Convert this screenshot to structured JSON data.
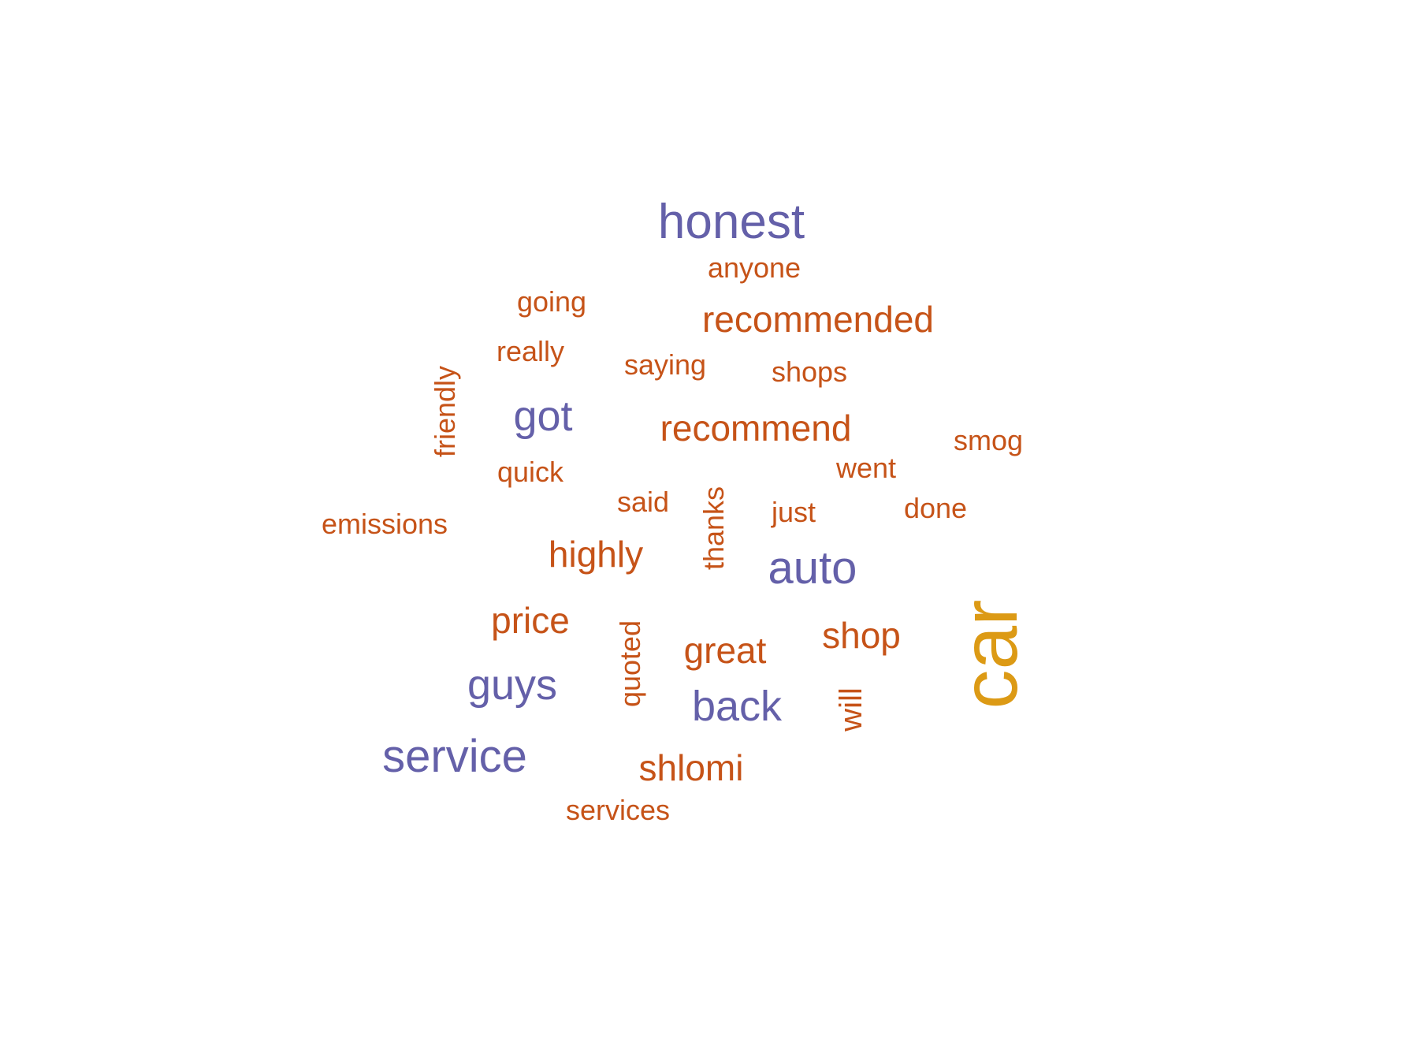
{
  "colors": {
    "background": "#ffffff",
    "purple": "#6460a9",
    "orange": "#c65318",
    "gold": "#dc9a15"
  },
  "words": [
    {
      "id": "honest",
      "text": "honest",
      "color": "purple"
    },
    {
      "id": "anyone",
      "text": "anyone",
      "color": "orange"
    },
    {
      "id": "going",
      "text": "going",
      "color": "orange"
    },
    {
      "id": "recommended",
      "text": "recommended",
      "color": "orange"
    },
    {
      "id": "really",
      "text": "really",
      "color": "orange"
    },
    {
      "id": "saying",
      "text": "saying",
      "color": "orange"
    },
    {
      "id": "shops",
      "text": "shops",
      "color": "orange"
    },
    {
      "id": "friendly",
      "text": "friendly",
      "color": "orange"
    },
    {
      "id": "got",
      "text": "got",
      "color": "purple"
    },
    {
      "id": "recommend",
      "text": "recommend",
      "color": "orange"
    },
    {
      "id": "smog",
      "text": "smog",
      "color": "orange"
    },
    {
      "id": "quick",
      "text": "quick",
      "color": "orange"
    },
    {
      "id": "went",
      "text": "went",
      "color": "orange"
    },
    {
      "id": "said",
      "text": "said",
      "color": "orange"
    },
    {
      "id": "thanks",
      "text": "thanks",
      "color": "orange"
    },
    {
      "id": "just",
      "text": "just",
      "color": "orange"
    },
    {
      "id": "done",
      "text": "done",
      "color": "orange"
    },
    {
      "id": "emissions",
      "text": "emissions",
      "color": "orange"
    },
    {
      "id": "highly",
      "text": "highly",
      "color": "orange"
    },
    {
      "id": "auto",
      "text": "auto",
      "color": "purple"
    },
    {
      "id": "car",
      "text": "car",
      "color": "gold"
    },
    {
      "id": "price",
      "text": "price",
      "color": "orange"
    },
    {
      "id": "quoted",
      "text": "quoted",
      "color": "orange"
    },
    {
      "id": "shop",
      "text": "shop",
      "color": "orange"
    },
    {
      "id": "great",
      "text": "great",
      "color": "orange"
    },
    {
      "id": "guys",
      "text": "guys",
      "color": "purple"
    },
    {
      "id": "back",
      "text": "back",
      "color": "purple"
    },
    {
      "id": "will",
      "text": "will",
      "color": "orange"
    },
    {
      "id": "service",
      "text": "service",
      "color": "purple"
    },
    {
      "id": "shlomi",
      "text": "shlomi",
      "color": "orange"
    },
    {
      "id": "services",
      "text": "services",
      "color": "orange"
    }
  ]
}
